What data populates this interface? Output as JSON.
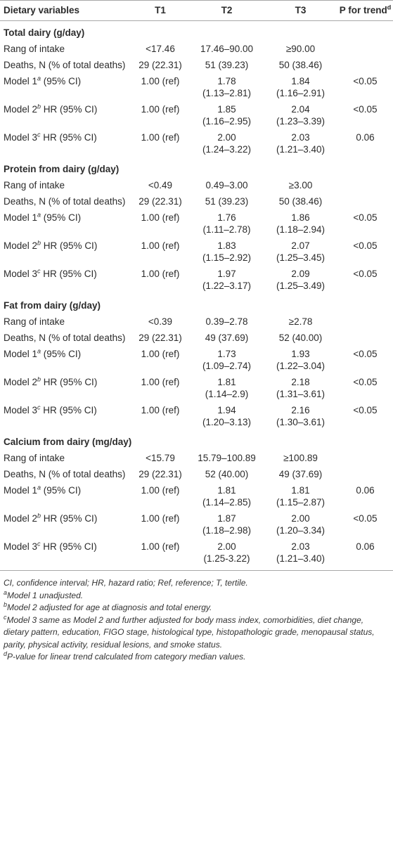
{
  "header": {
    "col0": "Dietary variables",
    "col1": "T1",
    "col2": "T2",
    "col3": "T3",
    "col4": "P for trend",
    "col4_sup": "d"
  },
  "sections": [
    {
      "title": "Total dairy (g/day)",
      "rows": [
        {
          "label": "Rang of intake",
          "t1": "<17.46",
          "t2": "17.46–90.00",
          "t3": "≥90.00",
          "p": ""
        },
        {
          "label": "Deaths, N (% of total deaths)",
          "t1": "29 (22.31)",
          "t2": "51 (39.23)",
          "t3": "50 (38.46)",
          "p": ""
        },
        {
          "label": "Model 1",
          "sup": "a",
          "label_suffix": " (95% CI)",
          "t1": "1.00 (ref)",
          "t2": "1.78",
          "t2b": "(1.13–2.81)",
          "t3": "1.84",
          "t3b": "(1.16–2.91)",
          "p": "<0.05"
        },
        {
          "label": "Model 2",
          "sup": "b",
          "label_suffix": " HR (95% CI)",
          "t1": "1.00 (ref)",
          "t2": "1.85",
          "t2b": "(1.16–2.95)",
          "t3": "2.04",
          "t3b": "(1.23–3.39)",
          "p": "<0.05"
        },
        {
          "label": "Model 3",
          "sup": "c",
          "label_suffix": " HR (95% CI)",
          "t1": "1.00 (ref)",
          "t2": "2.00",
          "t2b": "(1.24–3.22)",
          "t3": "2.03",
          "t3b": "(1.21–3.40)",
          "p": "0.06"
        }
      ]
    },
    {
      "title": "Protein from dairy (g/day)",
      "rows": [
        {
          "label": "Rang of intake",
          "t1": "<0.49",
          "t2": "0.49–3.00",
          "t3": "≥3.00",
          "p": ""
        },
        {
          "label": "Deaths, N (% of total deaths)",
          "t1": "29 (22.31)",
          "t2": "51 (39.23)",
          "t3": "50 (38.46)",
          "p": ""
        },
        {
          "label": "Model 1",
          "sup": "a",
          "label_suffix": " (95% CI)",
          "t1": "1.00 (ref)",
          "t2": "1.76",
          "t2b": "(1.11–2.78)",
          "t3": "1.86",
          "t3b": "(1.18–2.94)",
          "p": "<0.05"
        },
        {
          "label": "Model 2",
          "sup": "b",
          "label_suffix": " HR (95% CI)",
          "t1": "1.00 (ref)",
          "t2": "1.83",
          "t2b": "(1.15–2.92)",
          "t3": "2.07",
          "t3b": "(1.25–3.45)",
          "p": "<0.05"
        },
        {
          "label": "Model 3",
          "sup": "c",
          "label_suffix": " HR (95% CI)",
          "t1": "1.00 (ref)",
          "t2": "1.97",
          "t2b": "(1.22–3.17)",
          "t3": "2.09",
          "t3b": "(1.25–3.49)",
          "p": "<0.05"
        }
      ]
    },
    {
      "title": "Fat from dairy (g/day)",
      "rows": [
        {
          "label": "Rang of intake",
          "t1": "<0.39",
          "t2": "0.39–2.78",
          "t3": "≥2.78",
          "p": ""
        },
        {
          "label": "Deaths, N (% of total deaths)",
          "t1": "29 (22.31)",
          "t2": "49 (37.69)",
          "t3": "52 (40.00)",
          "p": ""
        },
        {
          "label": "Model 1",
          "sup": "a",
          "label_suffix": " (95% CI)",
          "t1": "1.00 (ref)",
          "t2": "1.73",
          "t2b": "(1.09–2.74)",
          "t3": "1.93",
          "t3b": "(1.22–3.04)",
          "p": "<0.05"
        },
        {
          "label": "Model 2",
          "sup": "b",
          "label_suffix": " HR (95% CI)",
          "t1": "1.00 (ref)",
          "t2": "1.81",
          "t2b": "(1.14–2.9)",
          "t3": "2.18",
          "t3b": "(1.31–3.61)",
          "p": "<0.05"
        },
        {
          "label": "Model 3",
          "sup": "c",
          "label_suffix": " HR (95% CI)",
          "t1": "1.00 (ref)",
          "t2": "1.94",
          "t2b": "(1.20–3.13)",
          "t3": "2.16",
          "t3b": "(1.30–3.61)",
          "p": "<0.05"
        }
      ]
    },
    {
      "title": "Calcium from dairy (mg/day)",
      "rows": [
        {
          "label": "Rang of intake",
          "t1": "<15.79",
          "t2": "15.79–100.89",
          "t3": "≥100.89",
          "p": ""
        },
        {
          "label": "Deaths, N (% of total deaths)",
          "t1": "29 (22.31)",
          "t2": "52 (40.00)",
          "t3": "49 (37.69)",
          "p": ""
        },
        {
          "label": "Model 1",
          "sup": "a",
          "label_suffix": " (95% CI)",
          "t1": "1.00 (ref)",
          "t2": "1.81",
          "t2b": "(1.14–2.85)",
          "t3": "1.81",
          "t3b": "(1.15–2.87)",
          "p": "0.06"
        },
        {
          "label": "Model 2",
          "sup": "b",
          "label_suffix": " HR (95% CI)",
          "t1": "1.00 (ref)",
          "t2": "1.87",
          "t2b": "(1.18–2.98)",
          "t3": "2.00",
          "t3b": "(1.20–3.34)",
          "p": "<0.05"
        },
        {
          "label": "Model 3",
          "sup": "c",
          "label_suffix": " HR (95% CI)",
          "t1": "1.00 (ref)",
          "t2": "2.00",
          "t2b": "(1.25-3.22)",
          "t3": "2.03",
          "t3b": "(1.21–3.40)",
          "p": "0.06"
        }
      ]
    }
  ],
  "footnotes": {
    "abbrev": "CI, confidence interval; HR, hazard ratio; Ref, reference; T, tertile.",
    "a_sup": "a",
    "a": "Model 1 unadjusted.",
    "b_sup": "b",
    "b": "Model 2 adjusted for age at diagnosis and total energy.",
    "c_sup": "c",
    "c": "Model 3 same as Model 2 and further adjusted for body mass index, comorbidities, diet change, dietary pattern, education, FIGO stage, histological type, histopathologic grade, menopausal status, parity, physical activity, residual lesions, and smoke status.",
    "d_sup": "d",
    "d": "P-value for linear trend calculated from category median values."
  }
}
